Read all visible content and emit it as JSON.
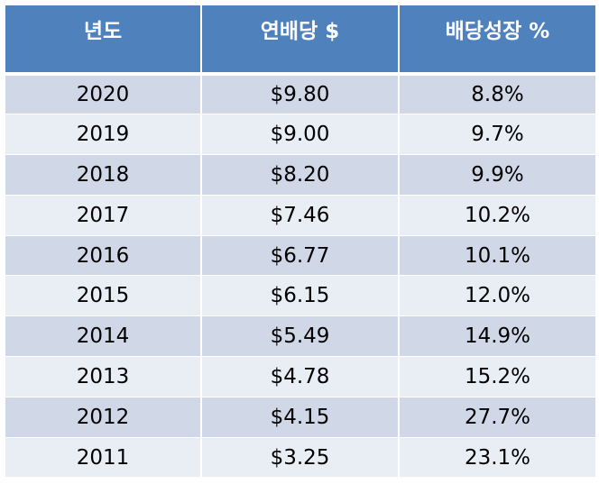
{
  "table": {
    "headers": [
      "년도",
      "연배당 $",
      "배당성장 %"
    ],
    "rows": [
      [
        "2020",
        "$9.80",
        "8.8%"
      ],
      [
        "2019",
        "$9.00",
        "9.7%"
      ],
      [
        "2018",
        "$8.20",
        "9.9%"
      ],
      [
        "2017",
        "$7.46",
        "10.2%"
      ],
      [
        "2016",
        "$6.77",
        "10.1%"
      ],
      [
        "2015",
        "$6.15",
        "12.0%"
      ],
      [
        "2014",
        "$5.49",
        "14.9%"
      ],
      [
        "2013",
        "$4.78",
        "15.2%"
      ],
      [
        "2012",
        "$4.15",
        "27.7%"
      ],
      [
        "2011",
        "$3.25",
        "23.1%"
      ]
    ]
  },
  "colors": {
    "header_bg": "#4f81bd",
    "row_dark": "#d0d8e8",
    "row_light": "#e9edf4"
  }
}
